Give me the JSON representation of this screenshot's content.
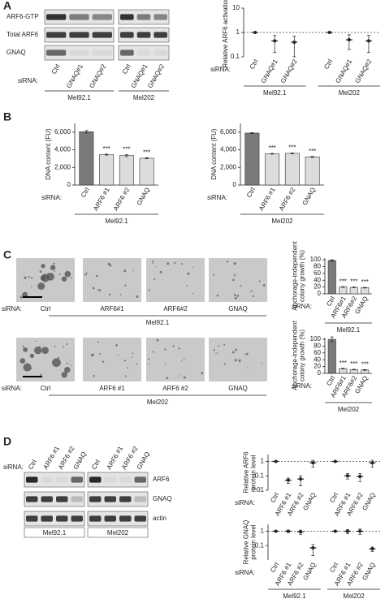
{
  "panel_labels": [
    "A",
    "B",
    "C",
    "D"
  ],
  "blot_a": {
    "rows": [
      "ARF6-GTP",
      "Total ARF6",
      "GNAQ"
    ],
    "row_label": "siRNA:",
    "lanes": [
      [
        "Ctrl",
        "GNAQ#1",
        "GNAQ#2"
      ],
      [
        "Ctrl",
        "GNAQ#1",
        "GNAQ#2"
      ]
    ],
    "groups": [
      "Mel92.1",
      "Mel202"
    ]
  },
  "images_c": {
    "row_label": "siRNA:",
    "rows": [
      {
        "lanes": [
          "Ctrl",
          "ARF6#1",
          "ARF6#2",
          "GNAQ"
        ],
        "group": "Mel92.1"
      },
      {
        "lanes": [
          "Ctrl",
          "ARF6 #1",
          "ARF6 #2",
          "GNAQ"
        ],
        "group": "Mel202"
      }
    ]
  },
  "blot_d": {
    "row_label": "siRNA:",
    "rows": [
      "ARF6",
      "GNAQ",
      "actin"
    ],
    "lanes": [
      [
        "Ctrl",
        "ARF6 #1",
        "ARF6 #2",
        "GNAQ"
      ],
      [
        "Ctrl",
        "ARF6 #1",
        "ARF6 #2",
        "GNAQ"
      ]
    ],
    "groups": [
      "Mel92.1",
      "Mel202"
    ]
  },
  "chart_data": [
    {
      "type": "dot",
      "y_label": [
        "Relative ARF6 activation"
      ],
      "x_label": "siRNA:",
      "log_scale": true,
      "ylim": [
        0.1,
        10
      ],
      "yticks": [
        0.1,
        1,
        10
      ],
      "reference": 1,
      "color": "#222222",
      "groups": [
        {
          "name": "Mel92.1",
          "categories": [
            "Ctrl",
            "GNAQ#1",
            "GNAQ#2"
          ],
          "values": [
            1,
            0.45,
            0.4
          ],
          "errors": [
            0,
            0.3,
            0.3
          ]
        },
        {
          "name": "Mel202",
          "categories": [
            "Ctrl",
            "GNAQ#1",
            "GNAQ#2"
          ],
          "values": [
            1,
            0.5,
            0.45
          ],
          "errors": [
            0,
            0.3,
            0.3
          ]
        }
      ]
    },
    {
      "type": "bar",
      "y_label": [
        "DNA content (FU)"
      ],
      "x_label": "siRNA:",
      "ylim": [
        0,
        7000
      ],
      "yticks": [
        0,
        {
          "value": 2000,
          "label": "2,000"
        },
        {
          "value": 4000,
          "label": "4,000"
        },
        {
          "value": 6000,
          "label": "6,000"
        }
      ],
      "groups": [
        {
          "name": "Mel92.1",
          "categories": [
            "Ctrl",
            "ARF6 #1",
            "ARF6 #2",
            "GNAQ"
          ],
          "values": [
            6050,
            3450,
            3350,
            3050
          ],
          "errors": [
            150,
            60,
            120,
            60
          ],
          "colors": [
            "#7a7a7a",
            "#dcdcdc",
            "#dcdcdc",
            "#dcdcdc"
          ],
          "significance": [
            null,
            "***",
            "***",
            "***"
          ]
        }
      ]
    },
    {
      "type": "bar",
      "y_label": [
        "DNA content (FU)"
      ],
      "x_label": "siRNA:",
      "ylim": [
        0,
        7000
      ],
      "yticks": [
        0,
        {
          "value": 2000,
          "label": "2,000"
        },
        {
          "value": 4000,
          "label": "4,000"
        },
        {
          "value": 6000,
          "label": "6,000"
        }
      ],
      "groups": [
        {
          "name": "Mel202",
          "categories": [
            "Ctrl",
            "ARF6 #1",
            "ARF6 #2",
            "GNAQ"
          ],
          "values": [
            5900,
            3550,
            3600,
            3200
          ],
          "errors": [
            60,
            40,
            40,
            50
          ],
          "colors": [
            "#7a7a7a",
            "#dcdcdc",
            "#dcdcdc",
            "#dcdcdc"
          ],
          "significance": [
            null,
            "***",
            "***",
            "***"
          ]
        }
      ]
    },
    {
      "type": "bar",
      "y_label": [
        "Anchorage-independent",
        "colony growth (%)"
      ],
      "x_label": "siRNA:",
      "ylim": [
        0,
        105
      ],
      "yticks": [
        0,
        20,
        40,
        60,
        80,
        100
      ],
      "groups": [
        {
          "name": "Mel92.1",
          "categories": [
            "Ctrl",
            "ARF6#1",
            "ARF6#2",
            "GNAQ"
          ],
          "values": [
            98,
            20,
            19,
            18
          ],
          "errors": [
            2,
            1,
            1,
            1
          ],
          "colors": [
            "#7a7a7a",
            "#dcdcdc",
            "#dcdcdc",
            "#dcdcdc"
          ],
          "significance": [
            null,
            "***",
            "***",
            "***"
          ]
        }
      ]
    },
    {
      "type": "bar",
      "y_label": [
        "Anchorage-independent",
        "colony growth (%)"
      ],
      "x_label": "siRNA:",
      "ylim": [
        0,
        105
      ],
      "yticks": [
        0,
        20,
        40,
        60,
        80,
        100
      ],
      "groups": [
        {
          "name": "Mel202",
          "categories": [
            "Ctrl",
            "ARF6#1",
            "ARF6#2",
            "GNAQ"
          ],
          "values": [
            100,
            14,
            11,
            10
          ],
          "errors": [
            7,
            1,
            1,
            1
          ],
          "colors": [
            "#7a7a7a",
            "#dcdcdc",
            "#dcdcdc",
            "#dcdcdc"
          ],
          "significance": [
            null,
            "***",
            "***",
            "***"
          ]
        }
      ]
    },
    {
      "type": "dot",
      "y_label": [
        "Relative ARF6",
        "protein level"
      ],
      "x_label": "siRNA:",
      "log_scale": true,
      "ylim": [
        0.01,
        3
      ],
      "yticks": [
        0.01,
        0.1,
        1
      ],
      "reference": 1,
      "color": "#222222",
      "groups": [
        {
          "name": null,
          "categories": [
            "Ctrl",
            "ARF6 #1",
            "ARF6 #2",
            "GNAQ"
          ],
          "values": [
            1,
            0.05,
            0.06,
            0.8
          ],
          "errors": [
            0,
            0.02,
            0.04,
            0.4
          ]
        },
        {
          "name": null,
          "categories": [
            "Ctrl",
            "ARF6 #1",
            "ARF6 #2",
            "GNAQ"
          ],
          "values": [
            1,
            0.1,
            0.09,
            0.8
          ],
          "errors": [
            0,
            0.04,
            0.05,
            0.4
          ]
        }
      ]
    },
    {
      "type": "dot",
      "y_label": [
        "Relative GNAQ",
        "protein level"
      ],
      "x_label": "siRNA:",
      "log_scale": true,
      "ylim": [
        0.01,
        3
      ],
      "yticks": [
        0.1,
        1
      ],
      "reference": 1,
      "color": "#222222",
      "groups": [
        {
          "name": "Mel92.1",
          "categories": [
            "Ctrl",
            "ARF6 #1",
            "ARF6 #2",
            "GNAQ"
          ],
          "values": [
            1,
            1,
            0.9,
            0.07
          ],
          "errors": [
            0,
            0.2,
            0.3,
            0.05
          ]
        },
        {
          "name": "Mel202",
          "categories": [
            "Ctrl",
            "ARF6 #1",
            "ARF6 #2",
            "GNAQ"
          ],
          "values": [
            1,
            1,
            1,
            0.06
          ],
          "errors": [
            0,
            0.3,
            0.4,
            0.02
          ]
        }
      ]
    }
  ]
}
